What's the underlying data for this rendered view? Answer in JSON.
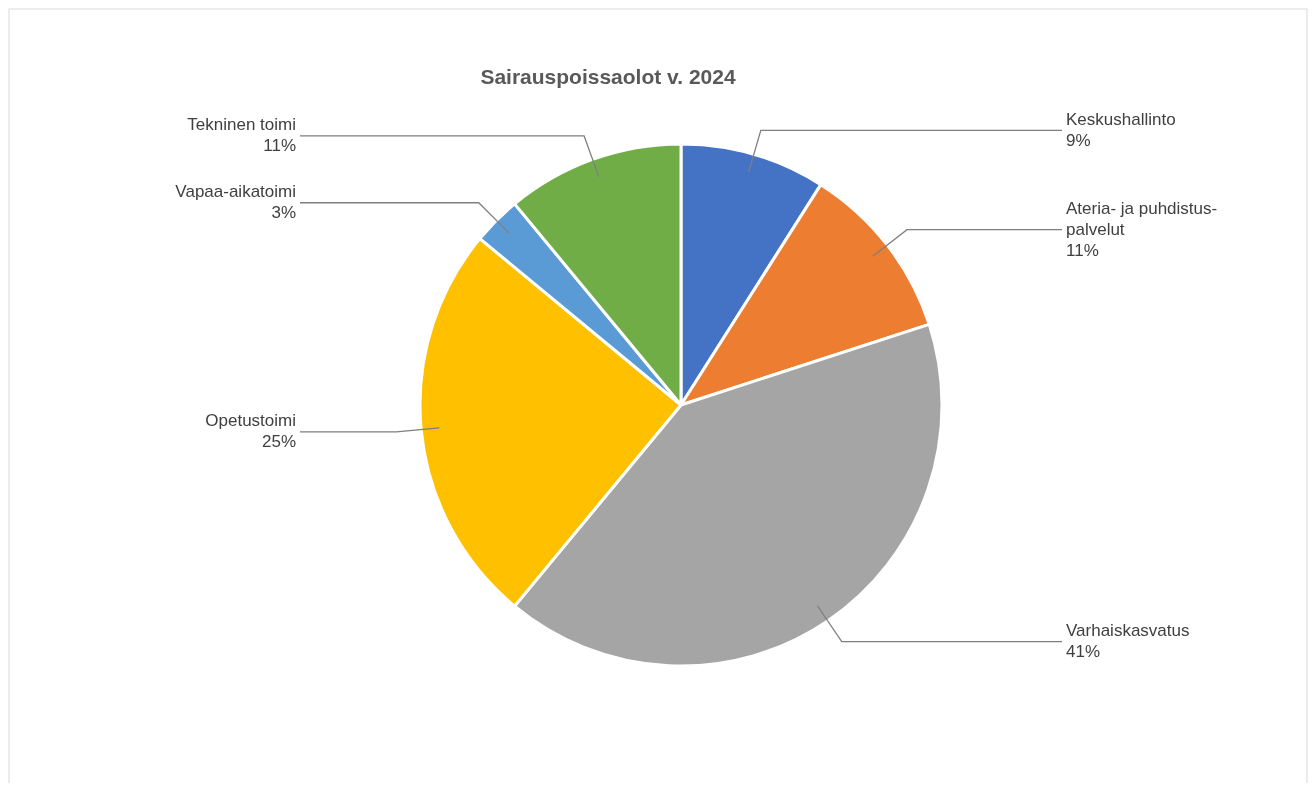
{
  "chart_data": {
    "type": "pie",
    "title": "Sairauspoissaolot v. 2024",
    "categories": [
      "Keskushallinto",
      "Ateria- ja puhdistus-palvelut",
      "Varhaiskasvatus",
      "Opetustoimi",
      "Vapaa-aikatoimi",
      "Tekninen toimi"
    ],
    "values": [
      9,
      11,
      41,
      25,
      3,
      11
    ],
    "colors": [
      "#4472c4",
      "#ed7d31",
      "#a5a5a5",
      "#ffc000",
      "#5b9bd5",
      "#70ad47"
    ],
    "value_labels": [
      "9%",
      "11%",
      "41%",
      "25%",
      "3%",
      "11%"
    ]
  }
}
